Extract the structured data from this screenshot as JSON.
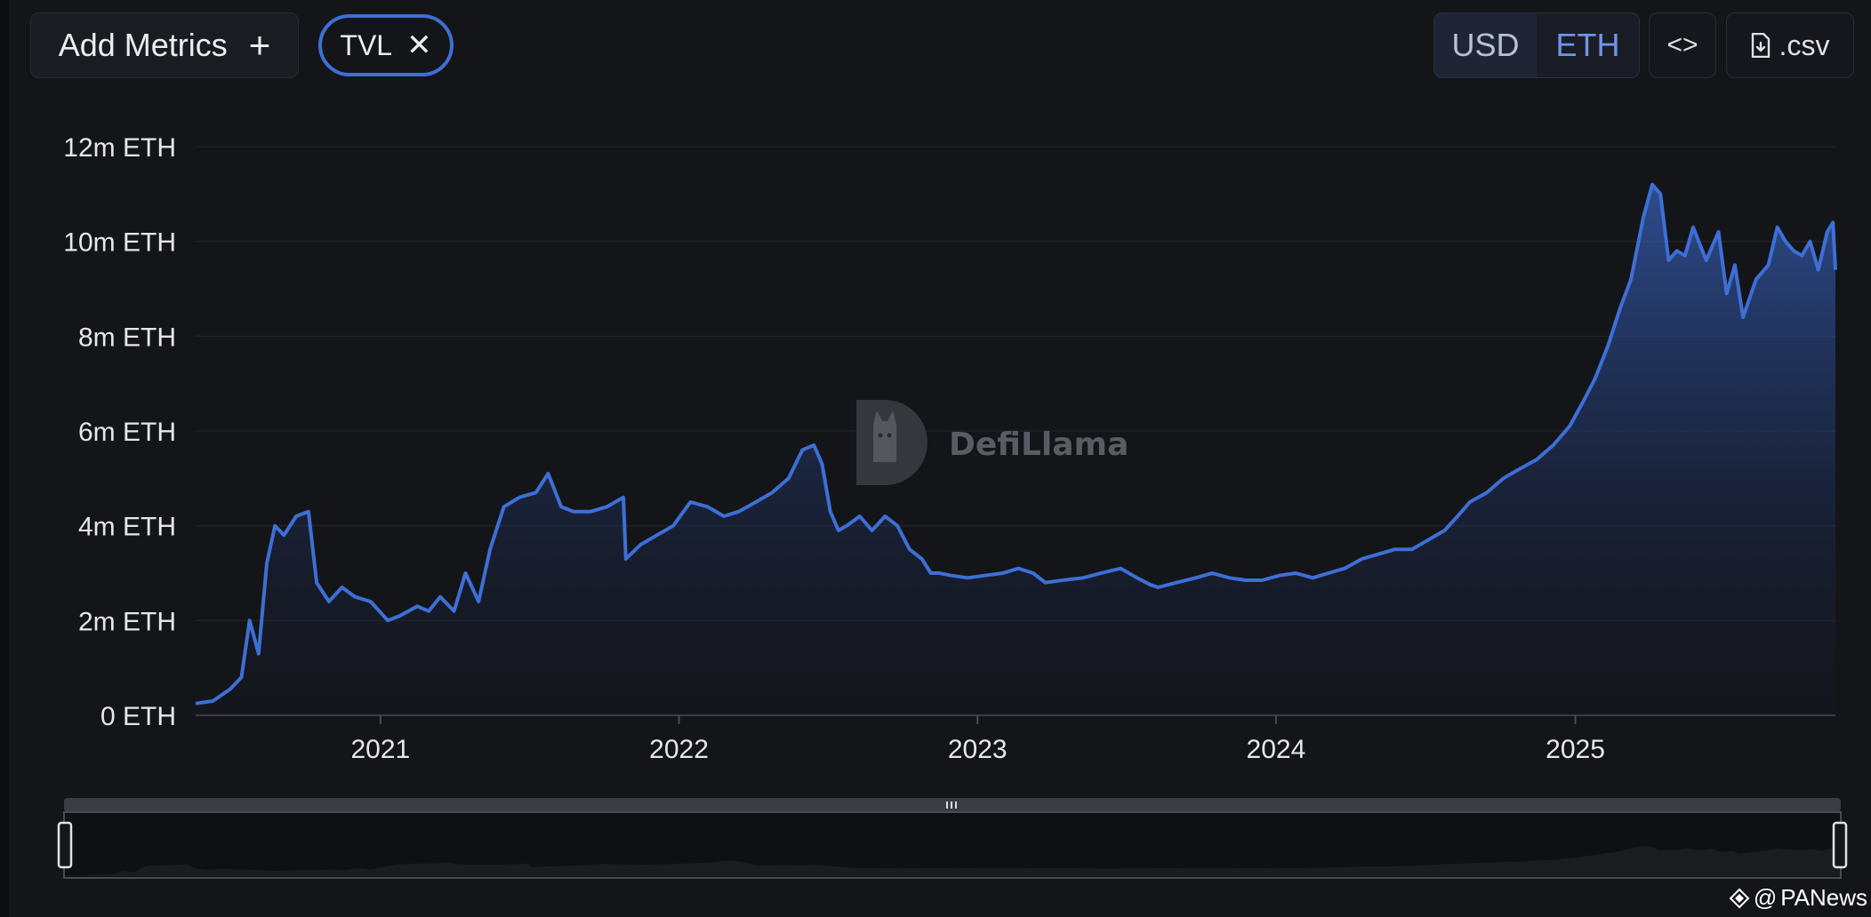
{
  "toolbar": {
    "add_metrics_label": "Add Metrics",
    "add_metrics_icon": "plus-icon",
    "metric_chip_label": "TVL",
    "metric_chip_remove_icon": "close-icon",
    "currency_options": [
      "USD",
      "ETH"
    ],
    "currency_selected": "ETH",
    "embed_icon": "code-brackets-icon",
    "embed_label": "<>",
    "csv_icon": "file-download-icon",
    "csv_label": ".csv"
  },
  "watermark": {
    "brand": "DefiLlama",
    "credit_prefix": "@",
    "credit": "PANews"
  },
  "colors": {
    "background": "#141519",
    "line": "#3d6fd6",
    "accent": "#6f95e8",
    "grid": "#23252c"
  },
  "chart_data": {
    "type": "area",
    "title": "",
    "xlabel": "",
    "ylabel": "",
    "x_tick_labels": [
      "2021",
      "2022",
      "2023",
      "2024",
      "2025"
    ],
    "y_tick_labels": [
      "0 ETH",
      "2m ETH",
      "4m ETH",
      "6m ETH",
      "8m ETH",
      "10m ETH",
      "12m ETH"
    ],
    "y_ticks": [
      0,
      2000000,
      4000000,
      6000000,
      8000000,
      10000000,
      12000000
    ],
    "ylim": [
      0,
      12000000
    ],
    "xlim": [
      "2020-05-20",
      "2025-11-15"
    ],
    "grid": true,
    "series": [
      {
        "name": "TVL",
        "x": [
          "2020-05-20",
          "2020-06-10",
          "2020-07-01",
          "2020-07-15",
          "2020-07-25",
          "2020-08-05",
          "2020-08-15",
          "2020-08-25",
          "2020-09-05",
          "2020-09-20",
          "2020-10-05",
          "2020-10-15",
          "2020-10-30",
          "2020-11-15",
          "2020-12-01",
          "2020-12-20",
          "2021-01-10",
          "2021-01-25",
          "2021-02-15",
          "2021-03-01",
          "2021-03-15",
          "2021-04-01",
          "2021-04-15",
          "2021-05-01",
          "2021-05-15",
          "2021-06-01",
          "2021-06-20",
          "2021-07-10",
          "2021-07-25",
          "2021-08-10",
          "2021-08-25",
          "2021-09-15",
          "2021-10-05",
          "2021-10-25",
          "2021-10-28",
          "2021-11-15",
          "2021-12-05",
          "2021-12-25",
          "2022-01-15",
          "2022-02-05",
          "2022-02-25",
          "2022-03-15",
          "2022-04-05",
          "2022-04-25",
          "2022-05-15",
          "2022-06-01",
          "2022-06-15",
          "2022-06-25",
          "2022-07-05",
          "2022-07-15",
          "2022-07-25",
          "2022-08-10",
          "2022-08-25",
          "2022-09-10",
          "2022-09-25",
          "2022-10-10",
          "2022-10-25",
          "2022-11-05",
          "2022-11-15",
          "2022-11-30",
          "2022-12-20",
          "2023-01-10",
          "2023-02-01",
          "2023-02-20",
          "2023-03-10",
          "2023-03-25",
          "2023-04-15",
          "2023-05-10",
          "2023-06-01",
          "2023-06-25",
          "2023-07-15",
          "2023-08-01",
          "2023-08-10",
          "2023-09-01",
          "2023-09-25",
          "2023-10-15",
          "2023-11-05",
          "2023-11-25",
          "2023-12-15",
          "2024-01-05",
          "2024-01-25",
          "2024-02-15",
          "2024-03-05",
          "2024-03-25",
          "2024-04-15",
          "2024-05-05",
          "2024-05-25",
          "2024-06-15",
          "2024-07-05",
          "2024-07-25",
          "2024-08-10",
          "2024-08-25",
          "2024-09-15",
          "2024-10-05",
          "2024-10-25",
          "2024-11-15",
          "2024-12-05",
          "2024-12-25",
          "2025-01-10",
          "2025-01-25",
          "2025-02-10",
          "2025-02-25",
          "2025-03-10",
          "2025-03-25",
          "2025-04-05",
          "2025-04-15",
          "2025-04-25",
          "2025-05-05",
          "2025-05-15",
          "2025-05-25",
          "2025-06-10",
          "2025-06-25",
          "2025-07-05",
          "2025-07-15",
          "2025-07-25",
          "2025-08-10",
          "2025-08-25",
          "2025-09-05",
          "2025-09-15",
          "2025-09-25",
          "2025-10-05",
          "2025-10-15",
          "2025-10-25",
          "2025-11-05",
          "2025-11-12",
          "2025-11-15"
        ],
        "values": [
          250000,
          300000,
          550000,
          800000,
          2000000,
          1300000,
          3200000,
          4000000,
          3800000,
          4200000,
          4300000,
          2800000,
          2400000,
          2700000,
          2500000,
          2400000,
          2000000,
          2100000,
          2300000,
          2200000,
          2500000,
          2200000,
          3000000,
          2400000,
          3500000,
          4400000,
          4600000,
          4700000,
          5100000,
          4400000,
          4300000,
          4300000,
          4400000,
          4600000,
          3300000,
          3600000,
          3800000,
          4000000,
          4500000,
          4400000,
          4200000,
          4300000,
          4500000,
          4700000,
          5000000,
          5600000,
          5700000,
          5300000,
          4300000,
          3900000,
          4000000,
          4200000,
          3900000,
          4200000,
          4000000,
          3500000,
          3300000,
          3000000,
          3000000,
          2950000,
          2900000,
          2950000,
          3000000,
          3100000,
          3000000,
          2800000,
          2850000,
          2900000,
          3000000,
          3100000,
          2900000,
          2750000,
          2700000,
          2800000,
          2900000,
          3000000,
          2900000,
          2850000,
          2850000,
          2950000,
          3000000,
          2900000,
          3000000,
          3100000,
          3300000,
          3400000,
          3500000,
          3500000,
          3700000,
          3900000,
          4200000,
          4500000,
          4700000,
          5000000,
          5200000,
          5400000,
          5700000,
          6100000,
          6600000,
          7100000,
          7800000,
          8600000,
          9200000,
          10500000,
          11200000,
          11000000,
          9600000,
          9800000,
          9700000,
          10300000,
          9600000,
          10200000,
          8900000,
          9500000,
          8400000,
          9200000,
          9500000,
          10300000,
          10000000,
          9800000,
          9700000,
          10000000,
          9400000,
          10200000,
          10400000,
          9400000
        ]
      }
    ]
  }
}
